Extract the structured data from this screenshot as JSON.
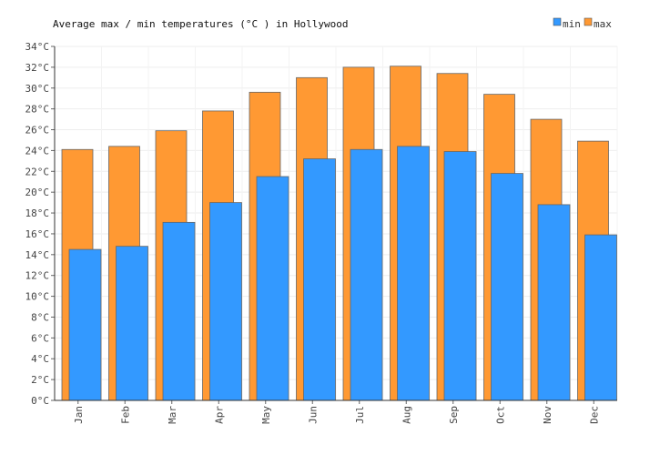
{
  "chart_data": {
    "type": "bar",
    "title": "Average max / min temperatures (°C ) in Hollywood",
    "categories": [
      "Jan",
      "Feb",
      "Mar",
      "Apr",
      "May",
      "Jun",
      "Jul",
      "Aug",
      "Sep",
      "Oct",
      "Nov",
      "Dec"
    ],
    "series": [
      {
        "name": "max",
        "color": "#ff9933",
        "values": [
          24.1,
          24.4,
          25.9,
          27.8,
          29.6,
          31.0,
          32.0,
          32.1,
          31.4,
          29.4,
          27.0,
          24.9
        ]
      },
      {
        "name": "min",
        "color": "#3399ff",
        "values": [
          14.5,
          14.8,
          17.1,
          19.0,
          21.5,
          23.2,
          24.1,
          24.4,
          23.9,
          21.8,
          18.8,
          15.9
        ]
      }
    ],
    "ylim": [
      0,
      34
    ],
    "ytick_step": 2,
    "ytick_suffix": "°C",
    "grid": true,
    "legend_position": "top-right",
    "legend": [
      "min",
      "max"
    ]
  }
}
